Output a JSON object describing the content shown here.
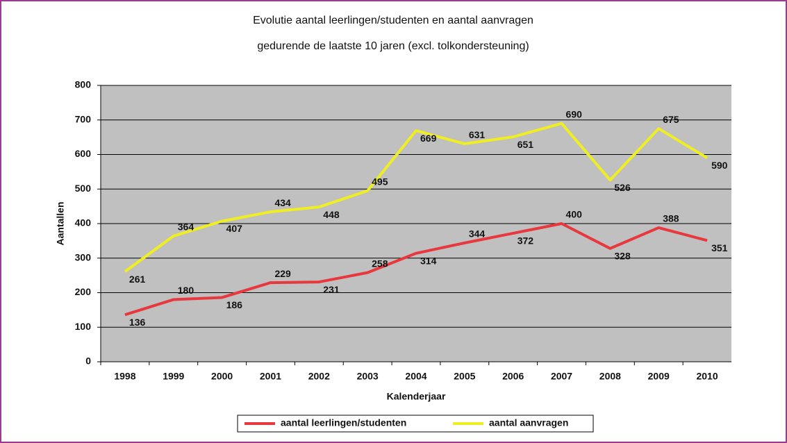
{
  "chart_data": {
    "type": "line",
    "title": "Evolutie aantal leerlingen/studenten en aantal aanvragen",
    "subtitle": "gedurende de laatste 10 jaren (excl. tolkondersteuning)",
    "x_label": "Kalenderjaar",
    "y_label": "Aantallen",
    "categories": [
      "1998",
      "1999",
      "2000",
      "2001",
      "2002",
      "2003",
      "2004",
      "2005",
      "2006",
      "2007",
      "2008",
      "2009",
      "2010"
    ],
    "series": [
      {
        "name": "aantal leerlingen/studenten",
        "color": "#e8383d",
        "values": [
          136,
          180,
          186,
          229,
          231,
          258,
          314,
          344,
          372,
          400,
          328,
          388,
          351
        ]
      },
      {
        "name": "aantal aanvragen",
        "color": "#eeee22",
        "values": [
          261,
          364,
          407,
          434,
          448,
          495,
          669,
          631,
          651,
          690,
          526,
          675,
          590
        ]
      }
    ],
    "ylim": [
      0,
      800
    ],
    "yticks": [
      0,
      100,
      200,
      300,
      400,
      500,
      600,
      700,
      800
    ],
    "grid": true,
    "legend": "bottom"
  }
}
